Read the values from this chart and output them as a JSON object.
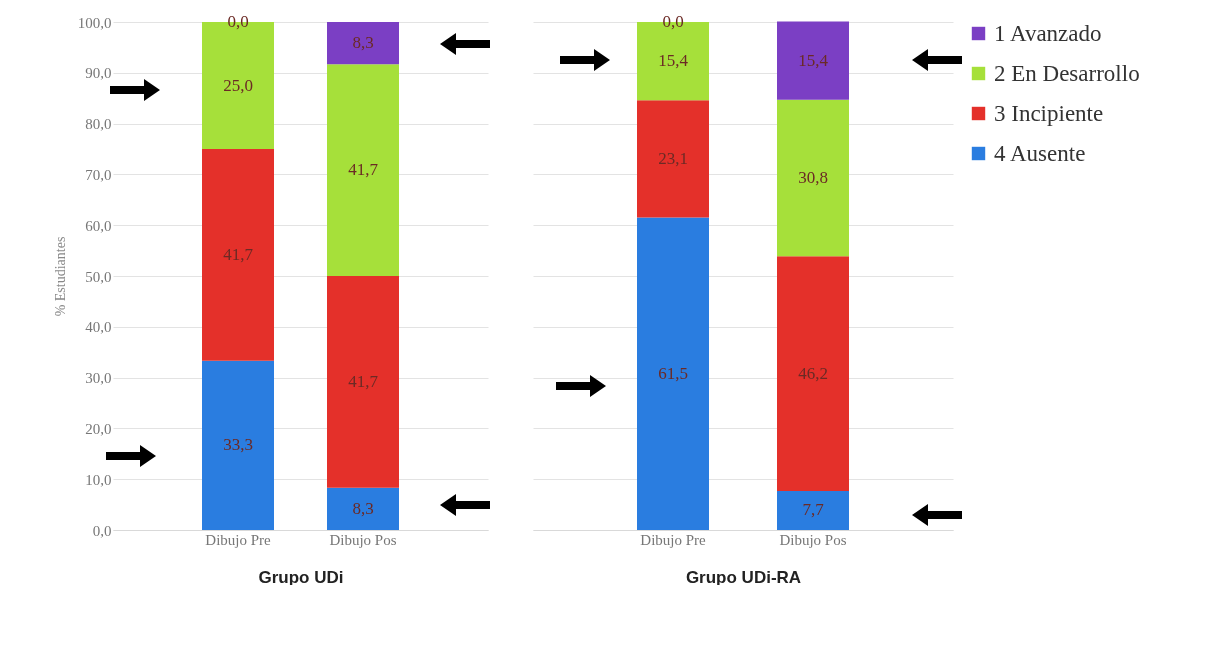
{
  "chart_data": [
    {
      "type": "bar",
      "stacked": true,
      "categories": [
        "Dibujo Pre",
        "Dibujo Pos"
      ],
      "xlabel": "Grupo UDi",
      "ylabel": "% Estudiantes",
      "ylim": [
        0,
        100
      ],
      "yticks": [
        {
          "value": 0,
          "label": "0,0"
        },
        {
          "value": 10,
          "label": "10,0"
        },
        {
          "value": 20,
          "label": "20,0"
        },
        {
          "value": 30,
          "label": "30,0"
        },
        {
          "value": 40,
          "label": "40,0"
        },
        {
          "value": 50,
          "label": "50,0"
        },
        {
          "value": 60,
          "label": "60,0"
        },
        {
          "value": 70,
          "label": "70,0"
        },
        {
          "value": 80,
          "label": "80,0"
        },
        {
          "value": 90,
          "label": "90,0"
        },
        {
          "value": 100,
          "label": "100,0"
        }
      ],
      "grid": "y",
      "legend": "right",
      "series": [
        {
          "name": "4 Ausente",
          "color": "#2a7de0",
          "values": [
            33.3,
            8.3
          ],
          "value_labels": [
            "33,3",
            "8,3"
          ]
        },
        {
          "name": "3 Incipiente",
          "color": "#e4302a",
          "values": [
            41.7,
            41.7
          ],
          "value_labels": [
            "41,7",
            "41,7"
          ]
        },
        {
          "name": "2 En Desarrollo",
          "color": "#a6e03a",
          "values": [
            25.0,
            41.7
          ],
          "value_labels": [
            "25,0",
            "41,7"
          ]
        },
        {
          "name": "1 Avanzado",
          "color": "#7b3fc4",
          "values": [
            0.0,
            8.3
          ],
          "value_labels": [
            "0,0",
            "8,3"
          ]
        }
      ]
    },
    {
      "type": "bar",
      "stacked": true,
      "categories": [
        "Dibujo Pre",
        "Dibujo Pos"
      ],
      "xlabel": "Grupo UDi-RA",
      "ylim": [
        0,
        100
      ],
      "yticks": [
        0,
        10,
        20,
        30,
        40,
        50,
        60,
        70,
        80,
        90,
        100
      ],
      "grid": "y",
      "tick_labels": "x",
      "legend": "right",
      "series": [
        {
          "name": "4 Ausente",
          "color": "#2a7de0",
          "values": [
            61.5,
            7.7
          ],
          "value_labels": [
            "61,5",
            "7,7"
          ]
        },
        {
          "name": "3 Incipiente",
          "color": "#e4302a",
          "values": [
            23.1,
            46.2
          ],
          "value_labels": [
            "23,1",
            "46,2"
          ]
        },
        {
          "name": "2 En Desarrollo",
          "color": "#a6e03a",
          "values": [
            15.4,
            30.8
          ],
          "value_labels": [
            "15,4",
            "30,8"
          ]
        },
        {
          "name": "1 Avanzado",
          "color": "#7b3fc4",
          "values": [
            0.0,
            15.4
          ],
          "value_labels": [
            "0,0",
            "15,4"
          ]
        }
      ]
    }
  ]
}
